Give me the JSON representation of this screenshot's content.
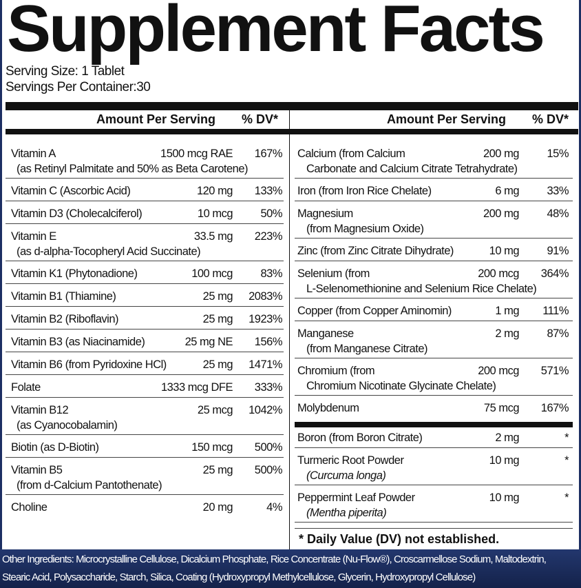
{
  "title": "Supplement Facts",
  "serving_size": "Serving Size: 1 Tablet",
  "servings_per_container": "Servings Per Container:30",
  "header": {
    "amount": "Amount Per Serving",
    "dv": "% DV*"
  },
  "left_rows": [
    {
      "name": "Vitamin A",
      "sub": "(as Retinyl Palmitate and 50% as Beta Carotene)",
      "amount": "1500 mcg RAE",
      "dv": "167%"
    },
    {
      "name": "Vitamin C (Ascorbic Acid)",
      "amount": "120 mg",
      "dv": "133%"
    },
    {
      "name": "Vitamin D3 (Cholecalciferol)",
      "amount": "10 mcg",
      "dv": "50%"
    },
    {
      "name": "Vitamin E",
      "sub": "(as d-alpha-Tocopheryl Acid Succinate)",
      "amount": "33.5 mg",
      "dv": "223%"
    },
    {
      "name": "Vitamin K1 (Phytonadione)",
      "amount": "100 mcg",
      "dv": "83%"
    },
    {
      "name": "Vitamin B1 (Thiamine)",
      "amount": "25 mg",
      "dv": "2083%"
    },
    {
      "name": "Vitamin B2 (Riboflavin)",
      "amount": "25 mg",
      "dv": "1923%"
    },
    {
      "name": "Vitamin B3 (as Niacinamide)",
      "amount": "25 mg NE",
      "dv": "156%"
    },
    {
      "name": "Vitamin B6 (from Pyridoxine HCl)",
      "amount": "25 mg",
      "dv": "1471%"
    },
    {
      "name": "Folate",
      "amount": "1333 mcg DFE",
      "dv": "333%"
    },
    {
      "name": "Vitamin B12",
      "sub": "(as Cyanocobalamin)",
      "amount": "25 mcg",
      "dv": "1042%"
    },
    {
      "name": "Biotin (as D-Biotin)",
      "amount": "150 mcg",
      "dv": "500%"
    },
    {
      "name": "Vitamin B5",
      "sub": "(from d-Calcium Pantothenate)",
      "amount": "25 mg",
      "dv": "500%"
    },
    {
      "name": "Choline",
      "amount": "20 mg",
      "dv": "4%"
    }
  ],
  "right_rows": [
    {
      "name": "Calcium (from Calcium",
      "sub": "Carbonate and Calcium Citrate Tetrahydrate)",
      "amount": "200 mg",
      "dv": "15%"
    },
    {
      "name": "Iron (from Iron Rice Chelate)",
      "amount": "6 mg",
      "dv": "33%"
    },
    {
      "name": "Magnesium",
      "sub": "(from Magnesium Oxide)",
      "amount": "200 mg",
      "dv": "48%"
    },
    {
      "name": "Zinc (from Zinc Citrate Dihydrate)",
      "amount": "10 mg",
      "dv": "91%"
    },
    {
      "name": "Selenium (from",
      "sub": "L-Selenomethionine and Selenium Rice Chelate)",
      "amount": "200 mcg",
      "dv": "364%"
    },
    {
      "name": "Copper (from Copper Aminomin)",
      "amount": "1 mg",
      "dv": "111%"
    },
    {
      "name": "Manganese",
      "sub": "(from Manganese Citrate)",
      "amount": "2 mg",
      "dv": "87%"
    },
    {
      "name": "Chromium (from",
      "sub": "Chromium Nicotinate Glycinate Chelate)",
      "amount": "200 mcg",
      "dv": "571%"
    },
    {
      "name": "Molybdenum",
      "amount": "75 mcg",
      "dv": "167%"
    }
  ],
  "right_other_rows": [
    {
      "name": "Boron (from Boron Citrate)",
      "amount": "2 mg",
      "dv": "*"
    },
    {
      "name": "Turmeric Root Powder",
      "sub": "(Curcuma longa)",
      "sub_italic": true,
      "amount": "10 mg",
      "dv": "*"
    },
    {
      "name": "Peppermint Leaf Powder",
      "sub": "(Mentha piperita)",
      "sub_italic": true,
      "amount": "10 mg",
      "dv": "*"
    }
  ],
  "footnote": "* Daily Value (DV) not established.",
  "other_ingredients": {
    "line1": "Other Ingredients:  Microcrystalline Cellulose, Dicalcium Phosphate, Rice Concentrate (Nu-Flow®), Croscarmellose Sodium, Maltodextrin,",
    "line2": "Stearic Acid, Polysaccharide, Starch, Silica, Coating (Hydroxypropyl Methylcellulose, Glycerin, Hydroxypropyl Cellulose)"
  },
  "colors": {
    "footer_bg": "#1d2f63",
    "text": "#111111"
  }
}
